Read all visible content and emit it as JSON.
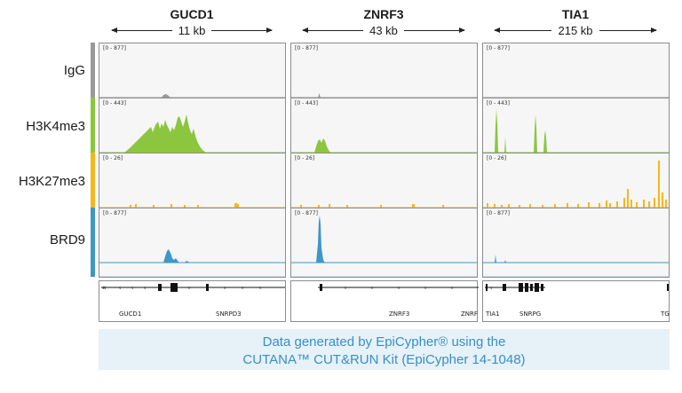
{
  "regions": [
    {
      "gene": "GUCD1",
      "scale": "11 kb",
      "gene_labels": [
        "GUCD1",
        "SNRPD3"
      ]
    },
    {
      "gene": "ZNRF3",
      "scale": "43 kb",
      "gene_labels": [
        "ZNRF3",
        "ZNRF"
      ]
    },
    {
      "gene": "TIA1",
      "scale": "215 kb",
      "gene_labels": [
        "TIA1",
        "SNRPG",
        "TG"
      ]
    }
  ],
  "tracks": [
    {
      "label": "IgG",
      "color": "#9a9a9a",
      "ranges": [
        "[0 - 877]",
        "[0 - 877]",
        "[0 - 877]"
      ]
    },
    {
      "label": "H3K4me3",
      "color": "#8cc63f",
      "ranges": [
        "[0 - 443]",
        "[0 - 443]",
        "[0 - 443]"
      ]
    },
    {
      "label": "H3K27me3",
      "color": "#f6b61c",
      "ranges": [
        "[0 - 26]",
        "[0 - 26]",
        "[0 - 26]"
      ]
    },
    {
      "label": "BRD9",
      "color": "#3e96c9",
      "ranges": [
        "[0 - 877]",
        "[0 - 877]",
        "[0 - 877]"
      ]
    }
  ],
  "footer": {
    "line1": "Data generated by EpiCypher® using the",
    "line2": "CUTANA™ CUT&RUN Kit (EpiCypher 14-1048)"
  }
}
